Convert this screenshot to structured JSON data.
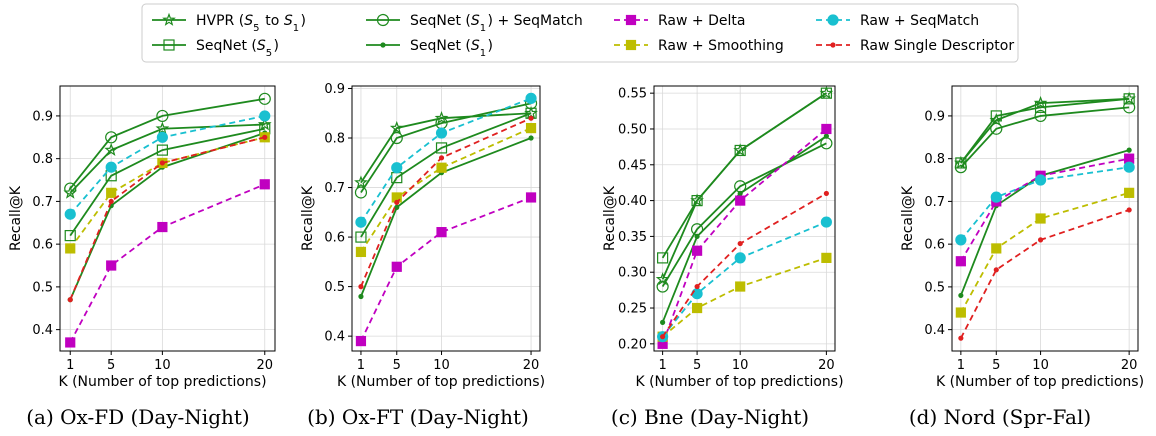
{
  "legend": {
    "placement": "top-center",
    "columns": [
      [
        "HVPR (S5 to S1)",
        "SeqNet (S5)"
      ],
      [
        "SeqNet (S1) + SeqMatch",
        "SeqNet (S1)"
      ],
      [
        "Raw + Delta",
        "Raw + Smoothing"
      ],
      [
        "Raw + SeqMatch",
        "Raw Single Descriptor"
      ]
    ]
  },
  "series_styles": [
    {
      "name": "HVPR (S5 to S1)",
      "color": "#1e8a1e",
      "dash": "solid",
      "marker": "star",
      "filled": false
    },
    {
      "name": "SeqNet (S5)",
      "color": "#1e8a1e",
      "dash": "solid",
      "marker": "square",
      "filled": false
    },
    {
      "name": "SeqNet (S1) + SeqMatch",
      "color": "#1e8a1e",
      "dash": "solid",
      "marker": "circle",
      "filled": false
    },
    {
      "name": "SeqNet (S1)",
      "color": "#1e8a1e",
      "dash": "solid",
      "marker": "dot",
      "filled": false
    },
    {
      "name": "Raw + Delta",
      "color": "#c000c0",
      "dash": "dashed",
      "marker": "square",
      "filled": true
    },
    {
      "name": "Raw + Smoothing",
      "color": "#bdbd00",
      "dash": "dashed",
      "marker": "square",
      "filled": true
    },
    {
      "name": "Raw + SeqMatch",
      "color": "#19c0d0",
      "dash": "dashed",
      "marker": "circle",
      "filled": true
    },
    {
      "name": "Raw Single Descriptor",
      "color": "#e02020",
      "dash": "dashed",
      "marker": "dot",
      "filled": true
    }
  ],
  "chart_data": [
    {
      "type": "line",
      "caption": "(a) Ox-FD (Day-Night)",
      "xlabel": "K (Number of top predictions)",
      "ylabel": "Recall@K",
      "x": [
        1,
        5,
        10,
        20
      ],
      "xticks": [
        1,
        5,
        10,
        20
      ],
      "xlim": [
        0,
        21
      ],
      "ylim": [
        0.35,
        0.97
      ],
      "yticks": [
        0.4,
        0.5,
        0.6,
        0.7,
        0.8,
        0.9
      ],
      "grid": true,
      "series": [
        {
          "name": "HVPR (S5 to S1)",
          "values": [
            0.72,
            0.82,
            0.87,
            0.88
          ]
        },
        {
          "name": "SeqNet (S5)",
          "values": [
            0.62,
            0.76,
            0.82,
            0.87
          ]
        },
        {
          "name": "SeqNet (S1) + SeqMatch",
          "values": [
            0.73,
            0.85,
            0.9,
            0.94
          ]
        },
        {
          "name": "SeqNet (S1)",
          "values": [
            0.47,
            0.69,
            0.78,
            0.86
          ]
        },
        {
          "name": "Raw + Delta",
          "values": [
            0.37,
            0.55,
            0.64,
            0.74
          ]
        },
        {
          "name": "Raw + Smoothing",
          "values": [
            0.59,
            0.72,
            0.79,
            0.85
          ]
        },
        {
          "name": "Raw + SeqMatch",
          "values": [
            0.67,
            0.78,
            0.85,
            0.9
          ]
        },
        {
          "name": "Raw Single Descriptor",
          "values": [
            0.47,
            0.7,
            0.79,
            0.85
          ]
        }
      ]
    },
    {
      "type": "line",
      "caption": "(b) Ox-FT (Day-Night)",
      "xlabel": "K (Number of top predictions)",
      "ylabel": "Recall@K",
      "x": [
        1,
        5,
        10,
        20
      ],
      "xticks": [
        1,
        5,
        10,
        20
      ],
      "xlim": [
        0,
        21
      ],
      "ylim": [
        0.37,
        0.905
      ],
      "yticks": [
        0.4,
        0.5,
        0.6,
        0.7,
        0.8,
        0.9
      ],
      "grid": true,
      "series": [
        {
          "name": "HVPR (S5 to S1)",
          "values": [
            0.71,
            0.82,
            0.84,
            0.85
          ]
        },
        {
          "name": "SeqNet (S5)",
          "values": [
            0.6,
            0.72,
            0.78,
            0.85
          ]
        },
        {
          "name": "SeqNet (S1) + SeqMatch",
          "values": [
            0.69,
            0.8,
            0.83,
            0.87
          ]
        },
        {
          "name": "SeqNet (S1)",
          "values": [
            0.48,
            0.66,
            0.73,
            0.8
          ]
        },
        {
          "name": "Raw + Delta",
          "values": [
            0.39,
            0.54,
            0.61,
            0.68
          ]
        },
        {
          "name": "Raw + Smoothing",
          "values": [
            0.57,
            0.68,
            0.74,
            0.82
          ]
        },
        {
          "name": "Raw + SeqMatch",
          "values": [
            0.63,
            0.74,
            0.81,
            0.88
          ]
        },
        {
          "name": "Raw Single Descriptor",
          "values": [
            0.5,
            0.67,
            0.76,
            0.84
          ]
        }
      ]
    },
    {
      "type": "line",
      "caption": "(c) Bne (Day-Night)",
      "xlabel": "K (Number of top predictions)",
      "ylabel": "Recall@K",
      "x": [
        1,
        5,
        10,
        20
      ],
      "xticks": [
        1,
        5,
        10,
        20
      ],
      "xlim": [
        0,
        21
      ],
      "ylim": [
        0.19,
        0.56
      ],
      "yticks": [
        0.2,
        0.25,
        0.3,
        0.35,
        0.4,
        0.45,
        0.5,
        0.55
      ],
      "grid": true,
      "series": [
        {
          "name": "HVPR (S5 to S1)",
          "values": [
            0.29,
            0.4,
            0.47,
            0.55
          ]
        },
        {
          "name": "SeqNet (S5)",
          "values": [
            0.32,
            0.4,
            0.47,
            0.55
          ]
        },
        {
          "name": "SeqNet (S1) + SeqMatch",
          "values": [
            0.28,
            0.36,
            0.42,
            0.48
          ]
        },
        {
          "name": "SeqNet (S1)",
          "values": [
            0.23,
            0.35,
            0.41,
            0.49
          ]
        },
        {
          "name": "Raw + Delta",
          "values": [
            0.2,
            0.33,
            0.4,
            0.5
          ]
        },
        {
          "name": "Raw + Smoothing",
          "values": [
            0.21,
            0.25,
            0.28,
            0.32
          ]
        },
        {
          "name": "Raw + SeqMatch",
          "values": [
            0.21,
            0.27,
            0.32,
            0.37
          ]
        },
        {
          "name": "Raw Single Descriptor",
          "values": [
            0.21,
            0.28,
            0.34,
            0.41
          ]
        }
      ]
    },
    {
      "type": "line",
      "caption": "(d) Nord (Spr-Fal)",
      "xlabel": "K (Number of top predictions)",
      "ylabel": "Recall@K",
      "x": [
        1,
        5,
        10,
        20
      ],
      "xticks": [
        1,
        5,
        10,
        20
      ],
      "xlim": [
        0,
        21
      ],
      "ylim": [
        0.35,
        0.97
      ],
      "yticks": [
        0.4,
        0.5,
        0.6,
        0.7,
        0.8,
        0.9
      ],
      "grid": true,
      "series": [
        {
          "name": "HVPR (S5 to S1)",
          "values": [
            0.79,
            0.89,
            0.93,
            0.94
          ]
        },
        {
          "name": "SeqNet (S5)",
          "values": [
            0.79,
            0.9,
            0.92,
            0.94
          ]
        },
        {
          "name": "SeqNet (S1) + SeqMatch",
          "values": [
            0.78,
            0.87,
            0.9,
            0.92
          ]
        },
        {
          "name": "SeqNet (S1)",
          "values": [
            0.48,
            0.69,
            0.76,
            0.82
          ]
        },
        {
          "name": "Raw + Delta",
          "values": [
            0.56,
            0.7,
            0.76,
            0.8
          ]
        },
        {
          "name": "Raw + Smoothing",
          "values": [
            0.44,
            0.59,
            0.66,
            0.72
          ]
        },
        {
          "name": "Raw + SeqMatch",
          "values": [
            0.61,
            0.71,
            0.75,
            0.78
          ]
        },
        {
          "name": "Raw Single Descriptor",
          "values": [
            0.38,
            0.54,
            0.61,
            0.68
          ]
        }
      ]
    }
  ]
}
